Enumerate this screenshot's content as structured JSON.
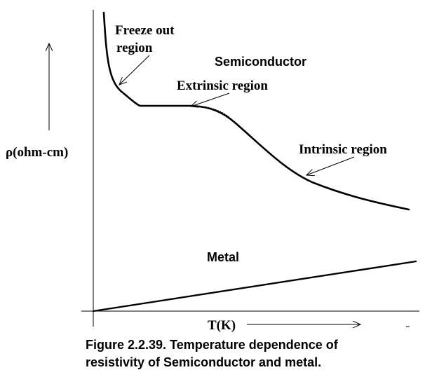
{
  "diagram": {
    "y_axis_label": "ρ(ohm-cm)",
    "x_axis_label": "T(K)",
    "curves": {
      "semiconductor": "Semiconductor",
      "metal": "Metal"
    },
    "annotations": {
      "freeze_out_line1": "Freeze out",
      "freeze_out_line2": "region",
      "extrinsic": "Extrinsic region",
      "intrinsic": "Intrinsic region"
    }
  },
  "caption": {
    "line1": "Figure 2.2.39. Temperature dependence of",
    "line2": "resistivity of Semiconductor and metal."
  }
}
